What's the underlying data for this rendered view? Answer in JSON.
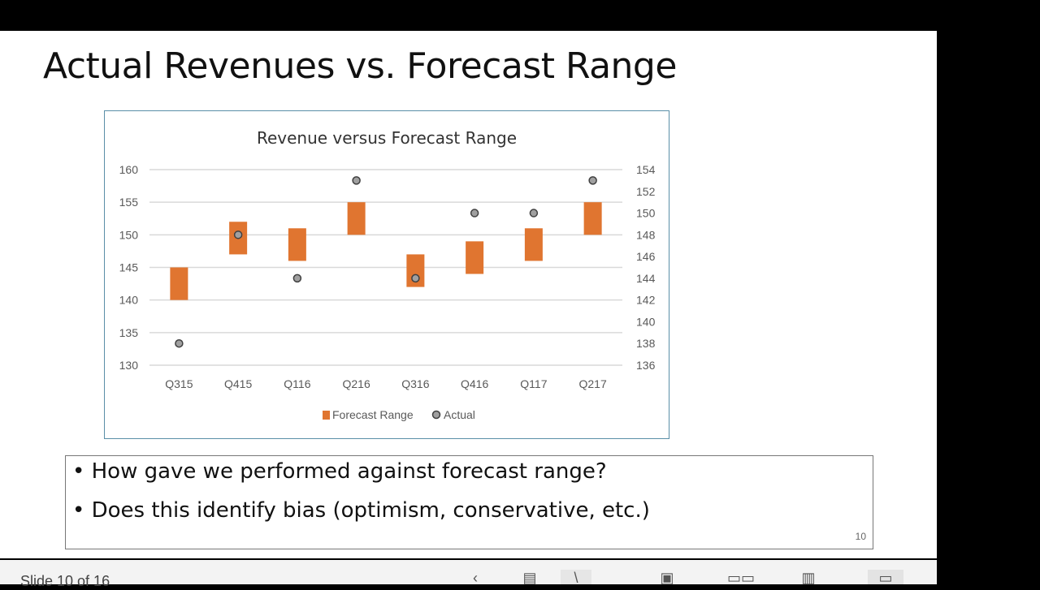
{
  "slide": {
    "title": "Actual Revenues vs. Forecast Range",
    "bullets": [
      "How gave we performed against forecast range?",
      "Does this identify bias (optimism, conservative, etc.)"
    ],
    "page_number": "10"
  },
  "chart_data": {
    "type": "bar",
    "title": "Revenue versus Forecast Range",
    "categories": [
      "Q315",
      "Q415",
      "Q116",
      "Q216",
      "Q316",
      "Q416",
      "Q117",
      "Q217"
    ],
    "series": [
      {
        "name": "Forecast Range",
        "axis": "left",
        "low": [
          140,
          147,
          146,
          150,
          142,
          144,
          146,
          150
        ],
        "high": [
          145,
          152,
          151,
          155,
          147,
          149,
          151,
          155
        ],
        "color": "#e07530"
      },
      {
        "name": "Actual",
        "axis": "right",
        "values": [
          138,
          148,
          144,
          153,
          144,
          150,
          150,
          153
        ],
        "color": "#a0a0a0"
      }
    ],
    "left_axis": {
      "ylim": [
        130,
        160
      ],
      "ticks": [
        130,
        135,
        140,
        145,
        150,
        155,
        160
      ]
    },
    "right_axis": {
      "ylim": [
        136,
        154
      ],
      "ticks": [
        136,
        138,
        140,
        142,
        144,
        146,
        148,
        150,
        152,
        154
      ]
    },
    "grid": true,
    "legend": "bottom"
  },
  "status": {
    "slide_text": "Slide 10 of 16"
  },
  "icons": [
    "back-icon",
    "notes-icon",
    "pointer-icon",
    "normal-view-icon",
    "slide-sorter-icon",
    "reading-view-icon",
    "slideshow-icon"
  ]
}
